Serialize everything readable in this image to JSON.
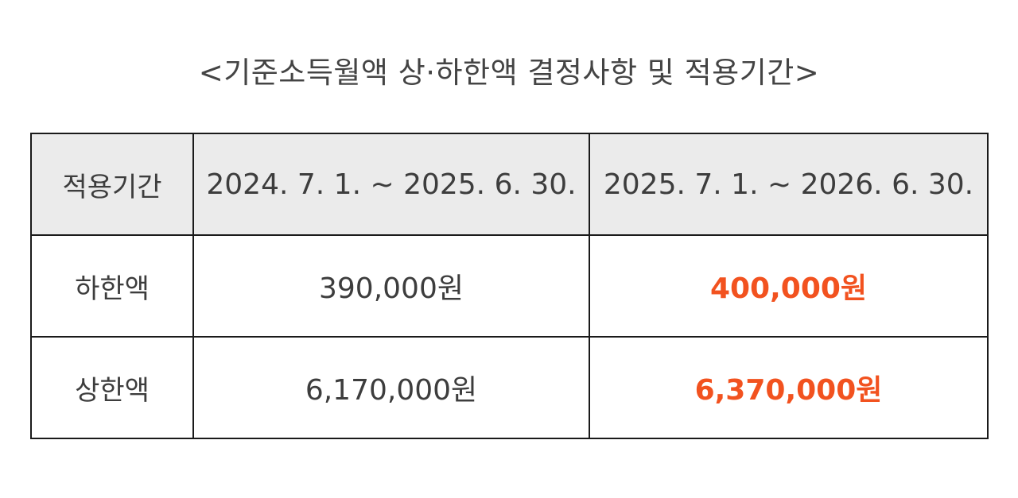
{
  "title": "<기준소득월액 상·하한액 결정사항 및 적용기간>",
  "table": {
    "header": {
      "label": "적용기간",
      "period_1": "2024. 7. 1. ~ 2025. 6. 30.",
      "period_2": "2025. 7. 1. ~ 2026. 6. 30."
    },
    "rows": [
      {
        "label": "하한액",
        "value_1": "390,000원",
        "value_2": "400,000원"
      },
      {
        "label": "상한액",
        "value_1": "6,170,000원",
        "value_2": "6,370,000원"
      }
    ]
  },
  "colors": {
    "highlight": "#f2521f",
    "header_background": "#ebebeb",
    "text": "#3d3d3d",
    "border": "#1a1a1a"
  }
}
